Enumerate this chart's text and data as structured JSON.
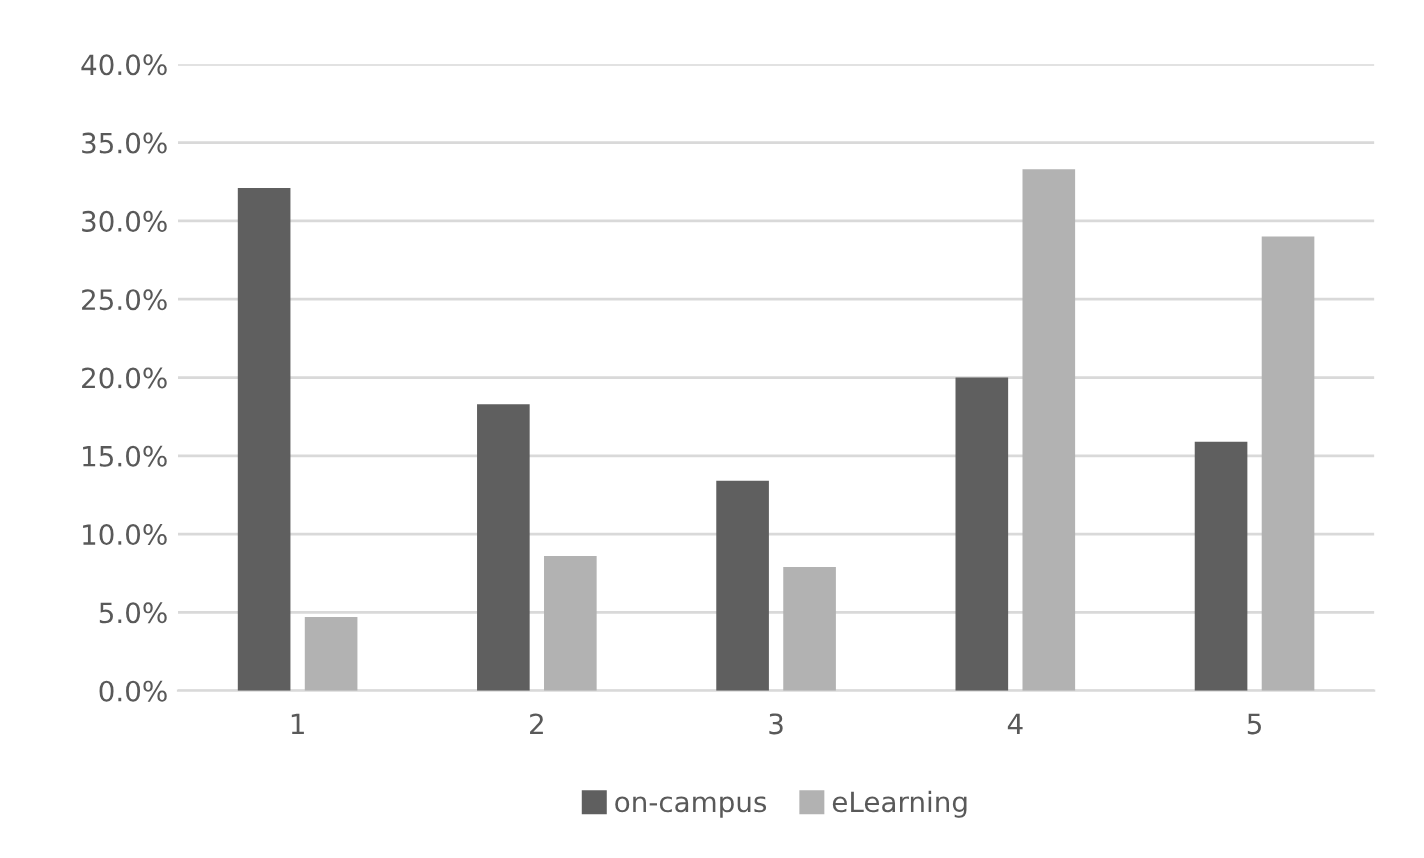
{
  "chart_data": {
    "type": "bar",
    "categories": [
      "1",
      "2",
      "3",
      "4",
      "5"
    ],
    "series": [
      {
        "name": "on-campus",
        "color": "#5f5f5f",
        "values": [
          32.1,
          18.3,
          13.4,
          20.0,
          15.9
        ]
      },
      {
        "name": "eLearning",
        "color": "#b2b2b2",
        "values": [
          4.7,
          8.6,
          7.9,
          33.3,
          29.0
        ]
      }
    ],
    "ylim": [
      0,
      40
    ],
    "yticks": [
      {
        "value": 0,
        "label": "0.0%"
      },
      {
        "value": 5,
        "label": "5.0%"
      },
      {
        "value": 10,
        "label": "10.0%"
      },
      {
        "value": 15,
        "label": "15.0%"
      },
      {
        "value": 20,
        "label": "20.0%"
      },
      {
        "value": 25,
        "label": "25.0%"
      },
      {
        "value": 30,
        "label": "30.0%"
      },
      {
        "value": 35,
        "label": "35.0%"
      },
      {
        "value": 40,
        "label": "40.0%"
      }
    ],
    "grid": "y",
    "legend": "bottom"
  }
}
